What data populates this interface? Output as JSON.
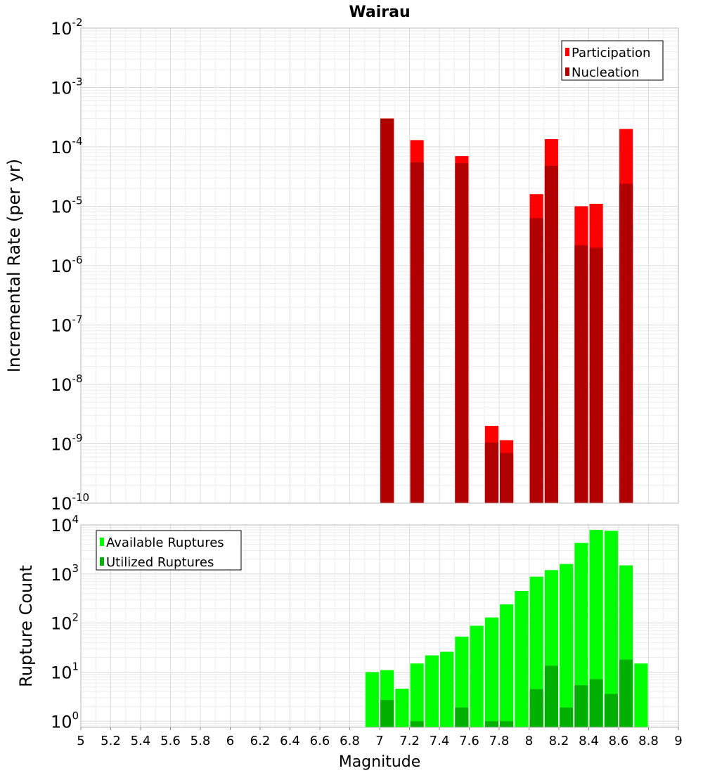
{
  "chart_data": [
    {
      "type": "bar",
      "title": "Wairau",
      "xlabel": "",
      "ylabel": "Incremental Rate (per yr)",
      "yscale": "log",
      "ylim": [
        1e-10,
        0.01
      ],
      "xlim": [
        5,
        9
      ],
      "ytick_labels": [
        "10^-10",
        "10^-9",
        "10^-8",
        "10^-7",
        "10^-6",
        "10^-5",
        "10^-4",
        "10^-3",
        "10^-2"
      ],
      "legend": {
        "placement": "top-right",
        "entries": [
          "Participation",
          "Nucleation"
        ]
      },
      "grid": true,
      "bar_width": 0.09,
      "series": [
        {
          "name": "Participation",
          "color": "#ff0000",
          "x": [
            7.05,
            7.25,
            7.55,
            7.75,
            7.85,
            8.05,
            8.15,
            8.35,
            8.45,
            8.65
          ],
          "values": [
            0.0003,
            0.00013,
            7e-05,
            2e-09,
            1.15e-09,
            1.6e-05,
            0.000135,
            1e-05,
            1.1e-05,
            0.0002
          ]
        },
        {
          "name": "Nucleation",
          "color": "#b00000",
          "x": [
            7.05,
            7.25,
            7.55,
            7.75,
            7.85,
            8.05,
            8.15,
            8.35,
            8.45,
            8.65
          ],
          "values": [
            0.0003,
            5.5e-05,
            5.3e-05,
            1.05e-09,
            7e-10,
            6.3e-06,
            4.8e-05,
            2.2e-06,
            2e-06,
            2.4e-05
          ]
        }
      ]
    },
    {
      "type": "bar",
      "title": "",
      "xlabel": "Magnitude",
      "ylabel": "Rupture Count",
      "yscale": "log",
      "ylim": [
        0.75,
        10000
      ],
      "xlim": [
        5,
        9
      ],
      "xtick_labels": [
        "5",
        "5.2",
        "5.4",
        "5.6",
        "5.8",
        "6",
        "6.2",
        "6.4",
        "6.6",
        "6.8",
        "7",
        "7.2",
        "7.4",
        "7.6",
        "7.8",
        "8",
        "8.2",
        "8.4",
        "8.6",
        "8.8",
        "9"
      ],
      "ytick_labels": [
        "10^0",
        "10^1",
        "10^2",
        "10^3",
        "10^4"
      ],
      "legend": {
        "placement": "top-left",
        "entries": [
          "Available Ruptures",
          "Utilized Ruptures"
        ]
      },
      "grid": true,
      "bar_width": 0.09,
      "series": [
        {
          "name": "Available Ruptures",
          "color": "#00ff00",
          "x": [
            6.95,
            7.05,
            7.15,
            7.25,
            7.35,
            7.45,
            7.55,
            7.65,
            7.75,
            7.85,
            7.95,
            8.05,
            8.15,
            8.25,
            8.35,
            8.45,
            8.55,
            8.65,
            8.75
          ],
          "values": [
            10,
            11,
            4.6,
            15,
            22,
            26,
            53,
            88,
            130,
            240,
            450,
            880,
            1200,
            1600,
            4300,
            7900,
            7600,
            1500,
            15
          ]
        },
        {
          "name": "Utilized Ruptures",
          "color": "#00b000",
          "x": [
            7.05,
            7.25,
            7.55,
            7.75,
            7.85,
            8.05,
            8.15,
            8.25,
            8.35,
            8.45,
            8.55,
            8.65
          ],
          "values": [
            2.7,
            1,
            1.9,
            1,
            1,
            4.5,
            13.5,
            1.9,
            5.4,
            7.2,
            3.6,
            18
          ]
        }
      ]
    }
  ]
}
